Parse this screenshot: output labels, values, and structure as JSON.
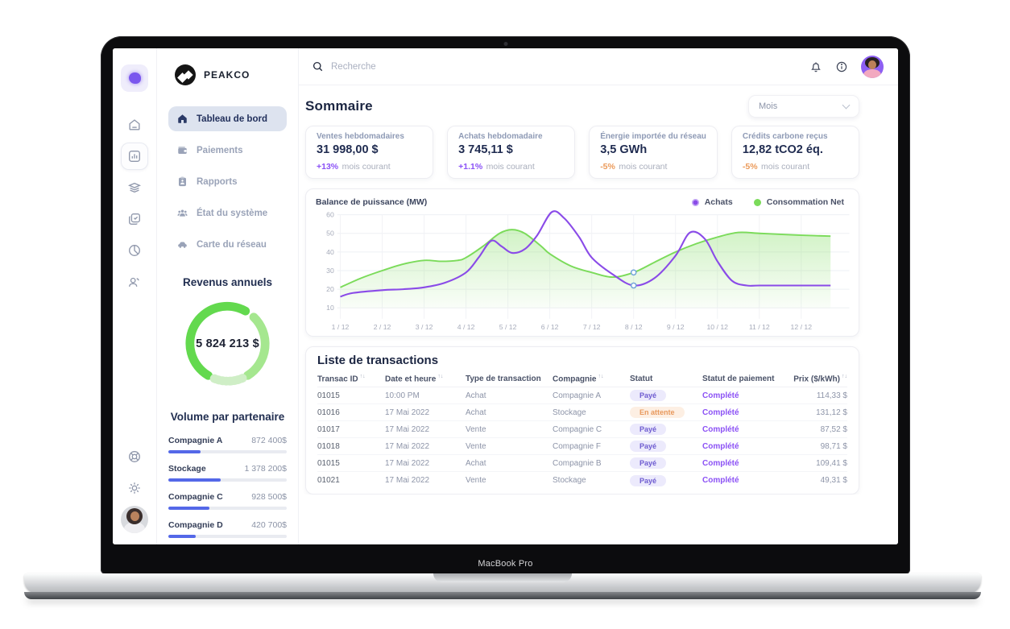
{
  "device": {
    "label": "MacBook Pro"
  },
  "brand": {
    "name": "PEAKCO"
  },
  "topbar": {
    "search_placeholder": "Recherche"
  },
  "page": {
    "title": "Sommaire",
    "period": "Mois"
  },
  "sidebar": {
    "nav": [
      {
        "label": "Tableau de bord",
        "active": true
      },
      {
        "label": "Paiements",
        "active": false
      },
      {
        "label": "Rapports",
        "active": false
      },
      {
        "label": "État du système",
        "active": false
      },
      {
        "label": "Carte du réseau",
        "active": false
      }
    ],
    "revenue": {
      "title": "Revenus annuels",
      "value": "5 824 213 $",
      "segments": [
        {
          "start": 212,
          "end": 388,
          "color": "#63d94e",
          "dotted": false
        },
        {
          "start": 44,
          "end": 148,
          "color": "#a5e78f",
          "dotted": false
        },
        {
          "start": 157,
          "end": 202,
          "color": "#cfeec6",
          "dotted": true
        }
      ]
    },
    "partners": {
      "title": "Volume par partenaire",
      "items": [
        {
          "label": "Compagnie A",
          "value": "872 400$",
          "pct": 27
        },
        {
          "label": "Stockage",
          "value": "1 378 200$",
          "pct": 44
        },
        {
          "label": "Compagnie C",
          "value": "928 500$",
          "pct": 35
        },
        {
          "label": "Compagnie D",
          "value": "420 700$",
          "pct": 23
        }
      ]
    }
  },
  "stats": [
    {
      "label": "Ventes hebdomadaires",
      "value": "31 998,00 $",
      "delta": "+13%",
      "trend": "up",
      "note": "mois courant"
    },
    {
      "label": "Achats hebdomadaire",
      "value": "3 745,11 $",
      "delta": "+1.1%",
      "trend": "up",
      "note": "mois courant"
    },
    {
      "label": "Énergie importée du réseau",
      "value": "3,5 GWh",
      "delta": "-5%",
      "trend": "down",
      "note": "mois courant"
    },
    {
      "label": "Crédits carbone reçus",
      "value": "12,82 tCO2 éq.",
      "delta": "-5%",
      "trend": "down",
      "note": "mois courant"
    }
  ],
  "chart_data": {
    "type": "line",
    "title": "Balance de puissance (MW)",
    "ylabel": "MW",
    "ylim": [
      10,
      60
    ],
    "y_ticks": [
      10,
      20,
      30,
      40,
      50,
      60
    ],
    "x_ticks": [
      "1 / 12",
      "2 / 12",
      "3 / 12",
      "4 / 12",
      "5 / 12",
      "6 / 12",
      "7 / 12",
      "8 / 12",
      "9 / 12",
      "10 / 12",
      "11 / 12",
      "12 / 12"
    ],
    "legend_position": "top-right",
    "series": [
      {
        "name": "Consommation Net",
        "color": "#7bdb5a",
        "area": true,
        "points": [
          [
            1,
            21
          ],
          [
            1.5,
            26
          ],
          [
            2,
            30
          ],
          [
            2.5,
            33.5
          ],
          [
            3,
            35.5
          ],
          [
            3.4,
            35
          ],
          [
            3.8,
            35.5
          ],
          [
            4,
            37
          ],
          [
            4.4,
            43
          ],
          [
            4.8,
            50
          ],
          [
            5.1,
            52
          ],
          [
            5.4,
            50
          ],
          [
            5.8,
            43
          ],
          [
            6,
            39
          ],
          [
            6.5,
            32.5
          ],
          [
            7,
            29
          ],
          [
            7.5,
            26.5
          ],
          [
            8,
            29
          ],
          [
            8.5,
            34.5
          ],
          [
            9,
            40
          ],
          [
            9.5,
            44.5
          ],
          [
            10,
            48
          ],
          [
            10.5,
            50.5
          ],
          [
            11,
            50
          ],
          [
            11.5,
            49.5
          ],
          [
            12,
            49
          ],
          [
            12.7,
            48.5
          ]
        ]
      },
      {
        "name": "Achats",
        "color": "#8a4be8",
        "area": false,
        "points": [
          [
            1,
            16
          ],
          [
            1.3,
            18
          ],
          [
            2,
            19.5
          ],
          [
            2.5,
            20
          ],
          [
            3,
            21
          ],
          [
            3.5,
            23.5
          ],
          [
            4,
            29
          ],
          [
            4.3,
            37
          ],
          [
            4.6,
            46
          ],
          [
            4.85,
            43
          ],
          [
            5.1,
            39.5
          ],
          [
            5.4,
            41.5
          ],
          [
            5.7,
            49
          ],
          [
            6.05,
            61.5
          ],
          [
            6.35,
            58
          ],
          [
            6.7,
            48
          ],
          [
            7,
            37
          ],
          [
            7.5,
            28
          ],
          [
            8,
            22
          ],
          [
            8.5,
            26
          ],
          [
            9,
            38
          ],
          [
            9.35,
            50.5
          ],
          [
            9.7,
            47
          ],
          [
            10,
            35
          ],
          [
            10.35,
            24.5
          ],
          [
            10.7,
            22
          ],
          [
            11,
            22
          ],
          [
            12,
            22
          ],
          [
            12.7,
            22
          ]
        ]
      }
    ],
    "markers": [
      {
        "x": 8,
        "y": 29
      },
      {
        "x": 8,
        "y": 22
      }
    ]
  },
  "transactions": {
    "title": "Liste de transactions",
    "columns": [
      {
        "label": "Transac ID",
        "sort": true
      },
      {
        "label": "Date et heure",
        "sort": true
      },
      {
        "label": "Type de transaction",
        "sort": false
      },
      {
        "label": "Compagnie",
        "sort": true
      },
      {
        "label": "Statut",
        "sort": false
      },
      {
        "label": "Statut de paiement",
        "sort": false
      },
      {
        "label": "Prix ($/kWh)",
        "sort": true
      }
    ],
    "rows": [
      {
        "id": "01015",
        "date": "10:00 PM",
        "type": "Achat",
        "company": "Compagnie A",
        "status": "Payé",
        "status_style": "paid",
        "payment": "Complété",
        "price": "114,33 $"
      },
      {
        "id": "01016",
        "date": "17 Mai 2022",
        "type": "Achat",
        "company": "Stockage",
        "status": "En attente",
        "status_style": "pending",
        "payment": "Complété",
        "price": "131,12 $"
      },
      {
        "id": "01017",
        "date": "17 Mai 2022",
        "type": "Vente",
        "company": "Compagnie C",
        "status": "Payé",
        "status_style": "paid",
        "payment": "Complété",
        "price": "87,52 $"
      },
      {
        "id": "01018",
        "date": "17 Mai 2022",
        "type": "Vente",
        "company": "Compagnie F",
        "status": "Payé",
        "status_style": "paid",
        "payment": "Complété",
        "price": "98,71 $"
      },
      {
        "id": "01015",
        "date": "17 Mai 2022",
        "type": "Achat",
        "company": "Compagnie B",
        "status": "Payé",
        "status_style": "paid",
        "payment": "Complété",
        "price": "109,41 $"
      },
      {
        "id": "01021",
        "date": "17 Mai 2022",
        "type": "Vente",
        "company": "Stockage",
        "status": "Payé",
        "status_style": "paid",
        "payment": "Complété",
        "price": "49,31 $"
      }
    ]
  }
}
